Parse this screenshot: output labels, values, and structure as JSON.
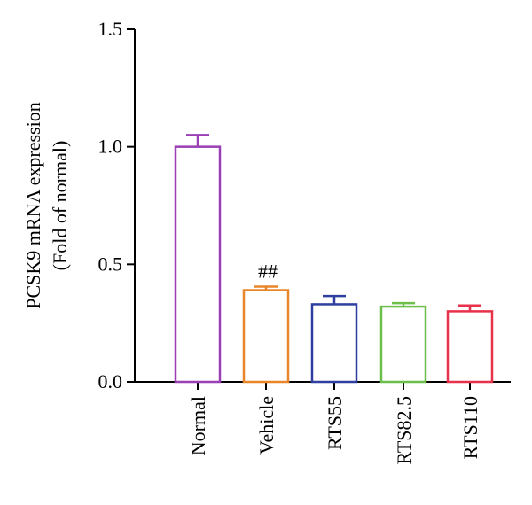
{
  "chart_data": {
    "type": "bar",
    "title": "",
    "xlabel": "",
    "ylabel": [
      "PCSK9 mRNA expression",
      "(Fold of normal)"
    ],
    "ylim": [
      0,
      1.5
    ],
    "yticks": [
      0.0,
      0.5,
      1.0,
      1.5
    ],
    "ytick_labels": [
      "0.0",
      "0.5",
      "1.0",
      "1.5"
    ],
    "grid": false,
    "legend": "none",
    "categories": [
      "Normal",
      "Vehicle",
      "RTS55",
      "RTS82.5",
      "RTS110"
    ],
    "values": [
      1.0,
      0.39,
      0.33,
      0.32,
      0.3
    ],
    "errors": [
      0.05,
      0.015,
      0.035,
      0.015,
      0.025
    ],
    "bar_colors": [
      "#9b3fb5",
      "#e8862a",
      "#2e3fa0",
      "#6cbf4a",
      "#e8314a"
    ],
    "annotations": [
      {
        "category": "Vehicle",
        "text": "##"
      }
    ]
  }
}
